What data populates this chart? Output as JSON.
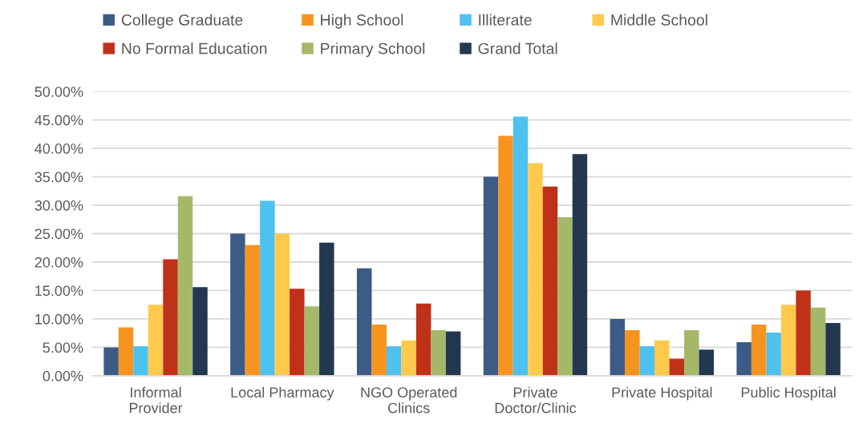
{
  "chart_data": {
    "type": "bar",
    "categories": [
      "Informal\nProvider",
      "Local Pharmacy",
      "NGO Operated\nClinics",
      "Private\nDoctor/Clinic",
      "Private Hospital",
      "Public Hospital"
    ],
    "series": [
      {
        "name": "College Graduate",
        "color": "#3c5b85",
        "values": [
          5.0,
          25.0,
          18.9,
          35.0,
          10.0,
          5.9
        ]
      },
      {
        "name": "High School",
        "color": "#f7941f",
        "values": [
          8.5,
          23.0,
          9.0,
          42.2,
          8.0,
          9.0
        ]
      },
      {
        "name": "Illiterate",
        "color": "#4fc1ef",
        "values": [
          5.2,
          30.8,
          5.2,
          45.6,
          5.2,
          7.6
        ]
      },
      {
        "name": "Middle School",
        "color": "#ffca4b",
        "values": [
          12.5,
          25.0,
          6.2,
          37.4,
          6.2,
          12.5
        ]
      },
      {
        "name": "No Formal Education",
        "color": "#c0311a",
        "values": [
          20.5,
          15.3,
          12.7,
          33.3,
          3.0,
          15.0
        ]
      },
      {
        "name": "Primary School",
        "color": "#a5b86a",
        "values": [
          31.6,
          12.2,
          8.0,
          27.9,
          8.0,
          12.0
        ]
      },
      {
        "name": "Grand Total",
        "color": "#23374f",
        "values": [
          15.6,
          23.4,
          7.8,
          39.0,
          4.6,
          9.3
        ]
      }
    ],
    "ylim": [
      0,
      50
    ],
    "yticks": [
      {
        "value": 0,
        "label": "0.00%"
      },
      {
        "value": 5,
        "label": "5.00%"
      },
      {
        "value": 10,
        "label": "10.00%"
      },
      {
        "value": 15,
        "label": "15.00%"
      },
      {
        "value": 20,
        "label": "20.00%"
      },
      {
        "value": 25,
        "label": "25.00%"
      },
      {
        "value": 30,
        "label": "30.00%"
      },
      {
        "value": 35,
        "label": "35.00%"
      },
      {
        "value": 40,
        "label": "40.00%"
      },
      {
        "value": 45,
        "label": "45.00%"
      },
      {
        "value": 50,
        "label": "50.00%"
      }
    ],
    "grid": "y",
    "legend": "top"
  }
}
